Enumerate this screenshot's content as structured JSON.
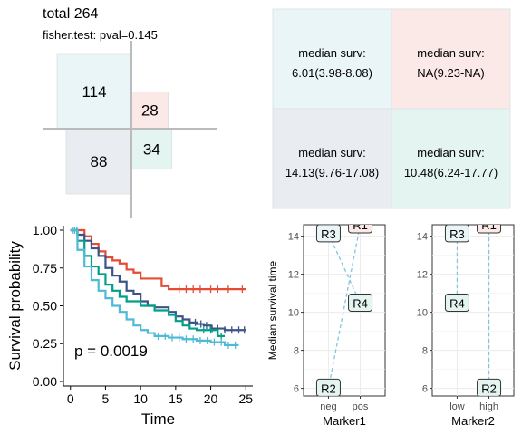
{
  "colors": {
    "q1": "#e9f5f7",
    "q2": "#fbe9e7",
    "q3": "#e9ecf1",
    "q4": "#e3f4f1",
    "km_red": "#e64b35",
    "km_navy": "#3c5488",
    "km_green": "#00a087",
    "km_cyan": "#4dbbd5",
    "dash": "#7fc6e2",
    "cross": "#bbbbbb"
  },
  "header": {
    "total": "total 264",
    "test": "fisher.test: pval=0.145"
  },
  "chart_data": [
    {
      "type": "table",
      "counts": [
        {
          "label": "114",
          "value": 114,
          "quadrant": "top-left"
        },
        {
          "label": "28",
          "value": 28,
          "quadrant": "top-right"
        },
        {
          "label": "88",
          "value": 88,
          "quadrant": "bottom-left"
        },
        {
          "label": "34",
          "value": 34,
          "quadrant": "bottom-right"
        }
      ]
    },
    {
      "type": "table",
      "cells": [
        {
          "label": "median surv:",
          "value": "6.01(3.98-8.08)",
          "quadrant": "top-left"
        },
        {
          "label": "median surv:",
          "value": "NA(9.23-NA)",
          "quadrant": "top-right"
        },
        {
          "label": "median surv:",
          "value": "14.13(9.76-17.08)",
          "quadrant": "bottom-left"
        },
        {
          "label": "median surv:",
          "value": "10.48(6.24-17.77)",
          "quadrant": "bottom-right"
        }
      ]
    },
    {
      "type": "line",
      "xlabel": "Time",
      "ylabel": "Survival probability",
      "xlim": [
        -1,
        26
      ],
      "ylim": [
        -0.03,
        1.03
      ],
      "xticks": [
        0,
        5,
        10,
        15,
        20,
        25
      ],
      "yticks": [
        0,
        0.25,
        0.5,
        0.75,
        1.0
      ],
      "ytick_labels": [
        "0.00",
        "0.25",
        "0.50",
        "0.75",
        "1.00"
      ],
      "annotation": "p = 0.0019",
      "series": [
        {
          "color": "red",
          "points": [
            [
              0,
              1
            ],
            [
              1,
              1
            ],
            [
              2,
              0.96
            ],
            [
              3,
              0.91
            ],
            [
              4,
              0.86
            ],
            [
              5,
              0.82
            ],
            [
              6,
              0.8
            ],
            [
              7,
              0.78
            ],
            [
              8,
              0.74
            ],
            [
              9,
              0.72
            ],
            [
              10,
              0.68
            ],
            [
              11,
              0.68
            ],
            [
              13,
              0.63
            ],
            [
              14,
              0.61
            ],
            [
              15,
              0.61
            ],
            [
              25,
              0.61
            ]
          ],
          "censor": [
            15.5,
            16.5,
            17.5,
            18.5,
            20,
            21,
            22.5,
            24.5
          ]
        },
        {
          "color": "navy",
          "points": [
            [
              0,
              1
            ],
            [
              1,
              0.97
            ],
            [
              2,
              0.93
            ],
            [
              3,
              0.88
            ],
            [
              4,
              0.83
            ],
            [
              5,
              0.75
            ],
            [
              6,
              0.7
            ],
            [
              7,
              0.66
            ],
            [
              8,
              0.6
            ],
            [
              9,
              0.58
            ],
            [
              10,
              0.53
            ],
            [
              11,
              0.5
            ],
            [
              12,
              0.49
            ],
            [
              14,
              0.46
            ],
            [
              15,
              0.43
            ],
            [
              16,
              0.41
            ],
            [
              17,
              0.39
            ],
            [
              18,
              0.38
            ],
            [
              19,
              0.37
            ],
            [
              20,
              0.35
            ],
            [
              22,
              0.34
            ],
            [
              25,
              0.34
            ]
          ],
          "censor": [
            17,
            17.8,
            18.6,
            19.4,
            20.2,
            21,
            22,
            23,
            24,
            24.8
          ]
        },
        {
          "color": "green",
          "points": [
            [
              0,
              1
            ],
            [
              1,
              0.93
            ],
            [
              2,
              0.83
            ],
            [
              3,
              0.76
            ],
            [
              4,
              0.71
            ],
            [
              5,
              0.64
            ],
            [
              6,
              0.6
            ],
            [
              7,
              0.56
            ],
            [
              8,
              0.53
            ],
            [
              10,
              0.5
            ],
            [
              12,
              0.47
            ],
            [
              14,
              0.44
            ],
            [
              15,
              0.4
            ],
            [
              16,
              0.37
            ],
            [
              17,
              0.35
            ],
            [
              18,
              0.34
            ],
            [
              21,
              0.3
            ],
            [
              22,
              0.3
            ]
          ],
          "censor": [
            19,
            20,
            21.5
          ]
        },
        {
          "color": "cyan",
          "points": [
            [
              0,
              1
            ],
            [
              1,
              0.87
            ],
            [
              2,
              0.76
            ],
            [
              3,
              0.67
            ],
            [
              4,
              0.6
            ],
            [
              5,
              0.55
            ],
            [
              6,
              0.5
            ],
            [
              7,
              0.46
            ],
            [
              8,
              0.41
            ],
            [
              9,
              0.37
            ],
            [
              10,
              0.34
            ],
            [
              11,
              0.32
            ],
            [
              12,
              0.3
            ],
            [
              14,
              0.29
            ],
            [
              16,
              0.28
            ],
            [
              18,
              0.27
            ],
            [
              20,
              0.26
            ],
            [
              22,
              0.24
            ],
            [
              24,
              0.24
            ]
          ],
          "censor": [
            12.5,
            13.5,
            14.5,
            15.5,
            16.5,
            17.5,
            18.5,
            19.5,
            20.5,
            21.5,
            22.5,
            23.5
          ]
        }
      ]
    },
    {
      "type": "scatter",
      "xlabel": "Marker1",
      "ylabel": "Median survival time",
      "categories": [
        "neg",
        "pos"
      ],
      "ylim": [
        5.6,
        14.6
      ],
      "yticks": [
        6,
        8,
        10,
        12,
        14
      ],
      "points": [
        {
          "label": "R1",
          "x": "pos",
          "y": 14.6
        },
        {
          "label": "R2",
          "x": "neg",
          "y": 6.01
        },
        {
          "label": "R3",
          "x": "neg",
          "y": 14.13
        },
        {
          "label": "R4",
          "x": "pos",
          "y": 10.48
        }
      ]
    },
    {
      "type": "scatter",
      "xlabel": "Marker2",
      "ylabel": "",
      "categories": [
        "low",
        "high"
      ],
      "ylim": [
        5.6,
        14.6
      ],
      "yticks": [
        6,
        8,
        10,
        12,
        14
      ],
      "points": [
        {
          "label": "R1",
          "x": "high",
          "y": 14.6
        },
        {
          "label": "R2",
          "x": "high",
          "y": 6.01
        },
        {
          "label": "R3",
          "x": "low",
          "y": 14.13
        },
        {
          "label": "R4",
          "x": "low",
          "y": 10.48
        }
      ]
    }
  ]
}
